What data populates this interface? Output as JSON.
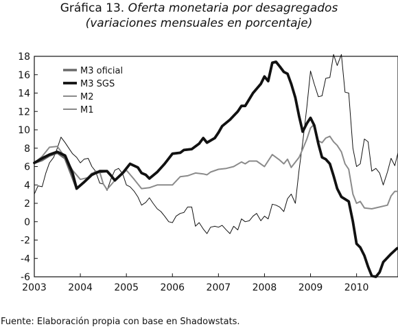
{
  "header": {
    "title_main": "Gráfica 13.",
    "title_italic": "Oferta monetaria por desagregados",
    "subtitle": "(variaciones mensuales en porcentaje)"
  },
  "source": "Fuente: Elaboración propia con base en Shadowstats.",
  "colors": {
    "m3_oficial": "#6a6a6a",
    "m3_sgs": "#111111",
    "m2": "#8a8a8a",
    "m1": "#111111"
  },
  "chart_data": {
    "type": "line",
    "title": "Oferta monetaria por desagregados",
    "subtitle": "(variaciones mensuales en porcentaje)",
    "xlabel": "",
    "ylabel": "",
    "xlim": [
      2003,
      2010.9
    ],
    "ylim": [
      -6,
      18
    ],
    "x_ticks": [
      2003,
      2004,
      2005,
      2006,
      2007,
      2008,
      2009,
      2010
    ],
    "y_ticks": [
      -6,
      -4,
      -2,
      0,
      2,
      4,
      6,
      8,
      10,
      12,
      14,
      16,
      18
    ],
    "grid": false,
    "legend_position": "top-left",
    "series": [
      {
        "name": "M3 oficial",
        "points": [
          [
            2003.0,
            6.4
          ],
          [
            2003.17,
            6.7
          ],
          [
            2003.33,
            7.2
          ],
          [
            2003.5,
            7.5
          ],
          [
            2003.67,
            6.9
          ],
          [
            2003.83,
            4.8
          ],
          [
            2003.92,
            3.6
          ],
          [
            2004.08,
            4.3
          ],
          [
            2004.25,
            5.2
          ],
          [
            2004.42,
            5.4
          ],
          [
            2004.58,
            5.5
          ],
          [
            2004.67,
            5.0
          ],
          [
            2004.75,
            4.5
          ],
          [
            2004.92,
            5.3
          ],
          [
            2005.0,
            5.8
          ],
          [
            2005.08,
            6.3
          ],
          [
            2005.25,
            5.9
          ],
          [
            2005.33,
            5.3
          ],
          [
            2005.42,
            5.1
          ],
          [
            2005.5,
            4.7
          ],
          [
            2005.67,
            5.4
          ],
          [
            2005.83,
            6.3
          ],
          [
            2006.0,
            7.4
          ],
          [
            2006.17,
            7.5
          ],
          [
            2006.25,
            7.8
          ],
          [
            2006.42,
            7.9
          ],
          [
            2006.58,
            8.5
          ],
          [
            2006.67,
            9.1
          ],
          [
            2006.75,
            8.6
          ],
          [
            2006.92,
            9.1
          ],
          [
            2007.0,
            9.7
          ],
          [
            2007.08,
            10.4
          ],
          [
            2007.25,
            11.1
          ],
          [
            2007.42,
            12.0
          ],
          [
            2007.5,
            12.6
          ],
          [
            2007.58,
            12.6
          ],
          [
            2007.75,
            14.0
          ],
          [
            2007.92,
            15.0
          ],
          [
            2008.0,
            15.8
          ],
          [
            2008.08,
            15.3
          ],
          [
            2008.17,
            17.3
          ]
        ]
      },
      {
        "name": "M3 SGS",
        "points": [
          [
            2003.0,
            6.4
          ],
          [
            2003.17,
            6.9
          ],
          [
            2003.33,
            7.3
          ],
          [
            2003.5,
            7.6
          ],
          [
            2003.67,
            7.2
          ],
          [
            2003.83,
            5.3
          ],
          [
            2003.92,
            3.6
          ],
          [
            2004.08,
            4.3
          ],
          [
            2004.25,
            5.1
          ],
          [
            2004.42,
            5.5
          ],
          [
            2004.58,
            5.5
          ],
          [
            2004.67,
            5.0
          ],
          [
            2004.75,
            4.5
          ],
          [
            2004.92,
            5.3
          ],
          [
            2005.0,
            5.8
          ],
          [
            2005.08,
            6.3
          ],
          [
            2005.25,
            5.9
          ],
          [
            2005.33,
            5.3
          ],
          [
            2005.42,
            5.1
          ],
          [
            2005.5,
            4.7
          ],
          [
            2005.67,
            5.4
          ],
          [
            2005.83,
            6.3
          ],
          [
            2006.0,
            7.4
          ],
          [
            2006.17,
            7.5
          ],
          [
            2006.25,
            7.8
          ],
          [
            2006.42,
            7.9
          ],
          [
            2006.58,
            8.5
          ],
          [
            2006.67,
            9.1
          ],
          [
            2006.75,
            8.6
          ],
          [
            2006.92,
            9.1
          ],
          [
            2007.0,
            9.7
          ],
          [
            2007.08,
            10.4
          ],
          [
            2007.25,
            11.1
          ],
          [
            2007.42,
            12.0
          ],
          [
            2007.5,
            12.6
          ],
          [
            2007.58,
            12.6
          ],
          [
            2007.75,
            14.0
          ],
          [
            2007.92,
            15.0
          ],
          [
            2008.0,
            15.8
          ],
          [
            2008.08,
            15.3
          ],
          [
            2008.17,
            17.3
          ],
          [
            2008.25,
            17.4
          ],
          [
            2008.33,
            16.9
          ],
          [
            2008.42,
            16.3
          ],
          [
            2008.5,
            16.1
          ],
          [
            2008.58,
            15.0
          ],
          [
            2008.67,
            13.5
          ],
          [
            2008.75,
            11.5
          ],
          [
            2008.83,
            9.8
          ],
          [
            2008.92,
            10.7
          ],
          [
            2009.0,
            11.3
          ],
          [
            2009.08,
            10.5
          ],
          [
            2009.17,
            8.5
          ],
          [
            2009.25,
            7.0
          ],
          [
            2009.33,
            6.8
          ],
          [
            2009.42,
            6.3
          ],
          [
            2009.5,
            5.0
          ],
          [
            2009.58,
            3.6
          ],
          [
            2009.67,
            2.7
          ],
          [
            2009.83,
            2.2
          ],
          [
            2009.92,
            0.0
          ],
          [
            2010.0,
            -2.4
          ],
          [
            2010.08,
            -2.8
          ],
          [
            2010.17,
            -3.7
          ],
          [
            2010.25,
            -4.9
          ],
          [
            2010.33,
            -5.9
          ],
          [
            2010.42,
            -6.0
          ],
          [
            2010.5,
            -5.5
          ],
          [
            2010.58,
            -4.4
          ],
          [
            2010.75,
            -3.5
          ],
          [
            2010.88,
            -2.9
          ]
        ]
      },
      {
        "name": "M2",
        "points": [
          [
            2003.0,
            6.4
          ],
          [
            2003.17,
            7.1
          ],
          [
            2003.33,
            8.1
          ],
          [
            2003.5,
            8.2
          ],
          [
            2003.67,
            7.0
          ],
          [
            2003.83,
            5.6
          ],
          [
            2004.0,
            4.6
          ],
          [
            2004.17,
            4.8
          ],
          [
            2004.33,
            5.5
          ],
          [
            2004.42,
            5.4
          ],
          [
            2004.5,
            4.1
          ],
          [
            2004.58,
            3.5
          ],
          [
            2004.75,
            4.5
          ],
          [
            2004.92,
            5.2
          ],
          [
            2005.0,
            5.6
          ],
          [
            2005.17,
            4.6
          ],
          [
            2005.33,
            3.6
          ],
          [
            2005.5,
            3.7
          ],
          [
            2005.67,
            4.0
          ],
          [
            2005.83,
            4.0
          ],
          [
            2006.0,
            4.0
          ],
          [
            2006.17,
            4.9
          ],
          [
            2006.33,
            5.0
          ],
          [
            2006.5,
            5.3
          ],
          [
            2006.67,
            5.2
          ],
          [
            2006.75,
            5.1
          ],
          [
            2006.83,
            5.4
          ],
          [
            2007.0,
            5.7
          ],
          [
            2007.17,
            5.8
          ],
          [
            2007.33,
            6.0
          ],
          [
            2007.5,
            6.5
          ],
          [
            2007.58,
            6.3
          ],
          [
            2007.67,
            6.6
          ],
          [
            2007.83,
            6.6
          ],
          [
            2008.0,
            6.0
          ],
          [
            2008.17,
            7.3
          ],
          [
            2008.33,
            6.7
          ],
          [
            2008.42,
            6.3
          ],
          [
            2008.5,
            6.8
          ],
          [
            2008.58,
            5.9
          ],
          [
            2008.75,
            7.0
          ],
          [
            2008.83,
            7.9
          ],
          [
            2008.92,
            9.0
          ],
          [
            2009.0,
            10.2
          ],
          [
            2009.08,
            10.6
          ],
          [
            2009.17,
            8.8
          ],
          [
            2009.25,
            8.6
          ],
          [
            2009.33,
            9.1
          ],
          [
            2009.42,
            9.3
          ],
          [
            2009.5,
            8.7
          ],
          [
            2009.58,
            8.3
          ],
          [
            2009.67,
            7.6
          ],
          [
            2009.75,
            6.3
          ],
          [
            2009.83,
            5.7
          ],
          [
            2009.92,
            3.0
          ],
          [
            2010.0,
            2.0
          ],
          [
            2010.08,
            2.2
          ],
          [
            2010.17,
            1.5
          ],
          [
            2010.33,
            1.4
          ],
          [
            2010.5,
            1.6
          ],
          [
            2010.67,
            1.8
          ],
          [
            2010.75,
            2.8
          ],
          [
            2010.83,
            3.3
          ],
          [
            2010.92,
            3.3
          ]
        ]
      },
      {
        "name": "M1",
        "points": [
          [
            2003.0,
            3.0
          ],
          [
            2003.08,
            3.9
          ],
          [
            2003.17,
            3.8
          ],
          [
            2003.25,
            5.3
          ],
          [
            2003.33,
            6.4
          ],
          [
            2003.42,
            7.0
          ],
          [
            2003.5,
            8.0
          ],
          [
            2003.58,
            9.2
          ],
          [
            2003.67,
            8.6
          ],
          [
            2003.75,
            8.0
          ],
          [
            2003.83,
            7.4
          ],
          [
            2003.92,
            7.0
          ],
          [
            2004.0,
            6.4
          ],
          [
            2004.08,
            6.8
          ],
          [
            2004.17,
            6.9
          ],
          [
            2004.25,
            6.0
          ],
          [
            2004.33,
            5.5
          ],
          [
            2004.42,
            4.2
          ],
          [
            2004.5,
            4.1
          ],
          [
            2004.58,
            3.4
          ],
          [
            2004.67,
            4.7
          ],
          [
            2004.75,
            5.6
          ],
          [
            2004.83,
            5.8
          ],
          [
            2004.92,
            5.2
          ],
          [
            2005.0,
            4.0
          ],
          [
            2005.08,
            3.8
          ],
          [
            2005.17,
            3.3
          ],
          [
            2005.25,
            2.7
          ],
          [
            2005.33,
            1.8
          ],
          [
            2005.42,
            2.1
          ],
          [
            2005.5,
            2.6
          ],
          [
            2005.58,
            2.0
          ],
          [
            2005.67,
            1.4
          ],
          [
            2005.75,
            1.1
          ],
          [
            2005.83,
            0.6
          ],
          [
            2005.92,
            0.0
          ],
          [
            2006.0,
            -0.1
          ],
          [
            2006.08,
            0.6
          ],
          [
            2006.17,
            0.9
          ],
          [
            2006.25,
            1.0
          ],
          [
            2006.33,
            1.6
          ],
          [
            2006.42,
            1.6
          ],
          [
            2006.5,
            -0.5
          ],
          [
            2006.58,
            -0.1
          ],
          [
            2006.67,
            -0.8
          ],
          [
            2006.75,
            -1.3
          ],
          [
            2006.83,
            -0.6
          ],
          [
            2006.92,
            -0.5
          ],
          [
            2007.0,
            -0.6
          ],
          [
            2007.08,
            -0.4
          ],
          [
            2007.17,
            -0.9
          ],
          [
            2007.25,
            -1.3
          ],
          [
            2007.33,
            -0.5
          ],
          [
            2007.42,
            -0.9
          ],
          [
            2007.5,
            0.3
          ],
          [
            2007.58,
            0.0
          ],
          [
            2007.67,
            0.1
          ],
          [
            2007.75,
            0.6
          ],
          [
            2007.83,
            0.9
          ],
          [
            2007.92,
            0.1
          ],
          [
            2008.0,
            0.6
          ],
          [
            2008.08,
            0.3
          ],
          [
            2008.17,
            1.9
          ],
          [
            2008.25,
            1.8
          ],
          [
            2008.33,
            1.6
          ],
          [
            2008.42,
            1.1
          ],
          [
            2008.5,
            2.5
          ],
          [
            2008.58,
            3.0
          ],
          [
            2008.67,
            2.0
          ],
          [
            2008.75,
            5.6
          ],
          [
            2008.83,
            8.6
          ],
          [
            2008.92,
            12.5
          ],
          [
            2009.0,
            16.4
          ],
          [
            2009.08,
            15.0
          ],
          [
            2009.17,
            13.6
          ],
          [
            2009.25,
            13.7
          ],
          [
            2009.33,
            15.6
          ],
          [
            2009.42,
            15.7
          ],
          [
            2009.5,
            18.2
          ],
          [
            2009.58,
            17.0
          ],
          [
            2009.67,
            18.2
          ],
          [
            2009.75,
            14.1
          ],
          [
            2009.83,
            14.0
          ],
          [
            2009.92,
            8.0
          ],
          [
            2010.0,
            6.0
          ],
          [
            2010.08,
            6.3
          ],
          [
            2010.17,
            9.0
          ],
          [
            2010.25,
            8.7
          ],
          [
            2010.33,
            5.5
          ],
          [
            2010.42,
            5.8
          ],
          [
            2010.5,
            5.3
          ],
          [
            2010.58,
            4.0
          ],
          [
            2010.67,
            5.4
          ],
          [
            2010.75,
            6.9
          ],
          [
            2010.83,
            6.1
          ],
          [
            2010.92,
            7.9
          ]
        ]
      }
    ]
  },
  "legend": [
    {
      "label": "M3 oficial",
      "series": 0
    },
    {
      "label": "M3 SGS",
      "series": 1
    },
    {
      "label": "M2",
      "series": 2
    },
    {
      "label": "M1",
      "series": 3
    }
  ]
}
